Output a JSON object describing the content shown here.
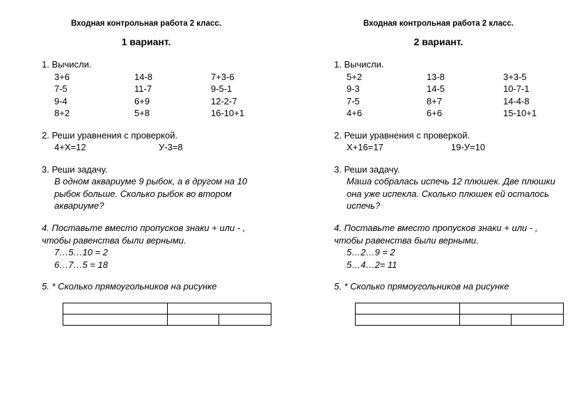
{
  "colors": {
    "text": "#000000",
    "bg": "#ffffff",
    "border": "#000000"
  },
  "font": {
    "family": "Verdana",
    "base_size_pt": 10
  },
  "variant1": {
    "docTitle": "Входная контрольная работа 2 класс.",
    "variant": "1 вариант.",
    "t1_label": "1. Вычисли.",
    "t1_col1": {
      "r1": "3+6",
      "r2": "7-5",
      "r3": "9-4",
      "r4": "8+2"
    },
    "t1_col2": {
      "r1": "14-8",
      "r2": "11-7",
      "r3": "6+9",
      "r4": "5+8"
    },
    "t1_col3": {
      "r1": "7+3-6",
      "r2": "9-5-1",
      "r3": "12-2-7",
      "r4": "16-10+1"
    },
    "t2_label": "2. Реши уравнения с проверкой.",
    "t2_eq1": "4+Х=12",
    "t2_eq2": "У-3=8",
    "t3_label": "3. Реши задачу.",
    "t3_text": "В одном аквариуме 9 рыбок, а в другом на 10 рыбок больше. Сколько рыбок во втором аквариуме?",
    "t4_label": "4. Поставьте вместо пропусков знаки + или - , чтобы равенства были верными.",
    "t4_l1": "7…5…10 = 2",
    "t4_l2": "6…7…5 = 18",
    "t5_label": "5. * Сколько прямоугольников на рисунке"
  },
  "variant2": {
    "docTitle": "Входная контрольная работа 2 класс.",
    "variant": "2 вариант.",
    "t1_label": "1. Вычисли.",
    "t1_col1": {
      "r1": "5+2",
      "r2": "9-3",
      "r3": "7-5",
      "r4": "4+6"
    },
    "t1_col2": {
      "r1": "13-8",
      "r2": "14-5",
      "r3": "8+7",
      "r4": "6+6"
    },
    "t1_col3": {
      "r1": "3+3-5",
      "r2": "10-7-1",
      "r3": "14-4-8",
      "r4": "15-10+1"
    },
    "t2_label": "2. Реши уравнения с проверкой.",
    "t2_eq1": "Х+16=17",
    "t2_eq2": "19-У=10",
    "t3_label": "3. Реши задачу.",
    "t3_text": "Маша собралась испечь 12 плюшек. Две плюшки она уже испекла. Сколько плюшек ей осталось испечь?",
    "t4_label": "4. Поставьте вместо пропусков знаки + или - , чтобы равенства были верными.",
    "t4_l1": "5…2…9 = 2",
    "t4_l2": "5…4…2= 11",
    "t5_label": "5. * Сколько прямоугольников на рисунке"
  }
}
